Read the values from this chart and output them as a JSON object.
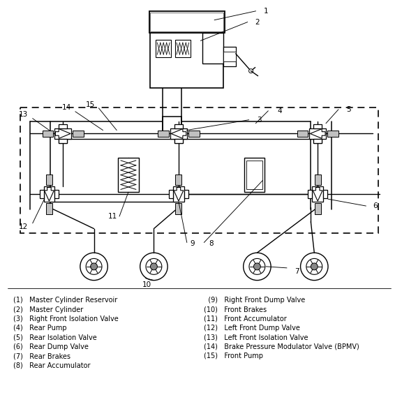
{
  "background_color": "#ffffff",
  "legend_left": [
    "(1)   Master Cylinder Reservoir",
    "(2)   Master Cylinder",
    "(3)   Right Front Isolation Valve",
    "(4)   Rear Pump",
    "(5)   Rear Isolation Valve",
    "(6)   Rear Dump Valve",
    "(7)   Rear Brakes",
    "(8)   Rear Accumulator"
  ],
  "legend_right": [
    "  (9)   Right Front Dump Valve",
    "(10)   Front Brakes",
    "(11)   Front Accumulator",
    "(12)   Left Front Dump Valve",
    "(13)   Left Front Isolation Valve",
    "(14)   Brake Pressure Modulator Valve (BPMV)",
    "(15)   Front Pump"
  ]
}
